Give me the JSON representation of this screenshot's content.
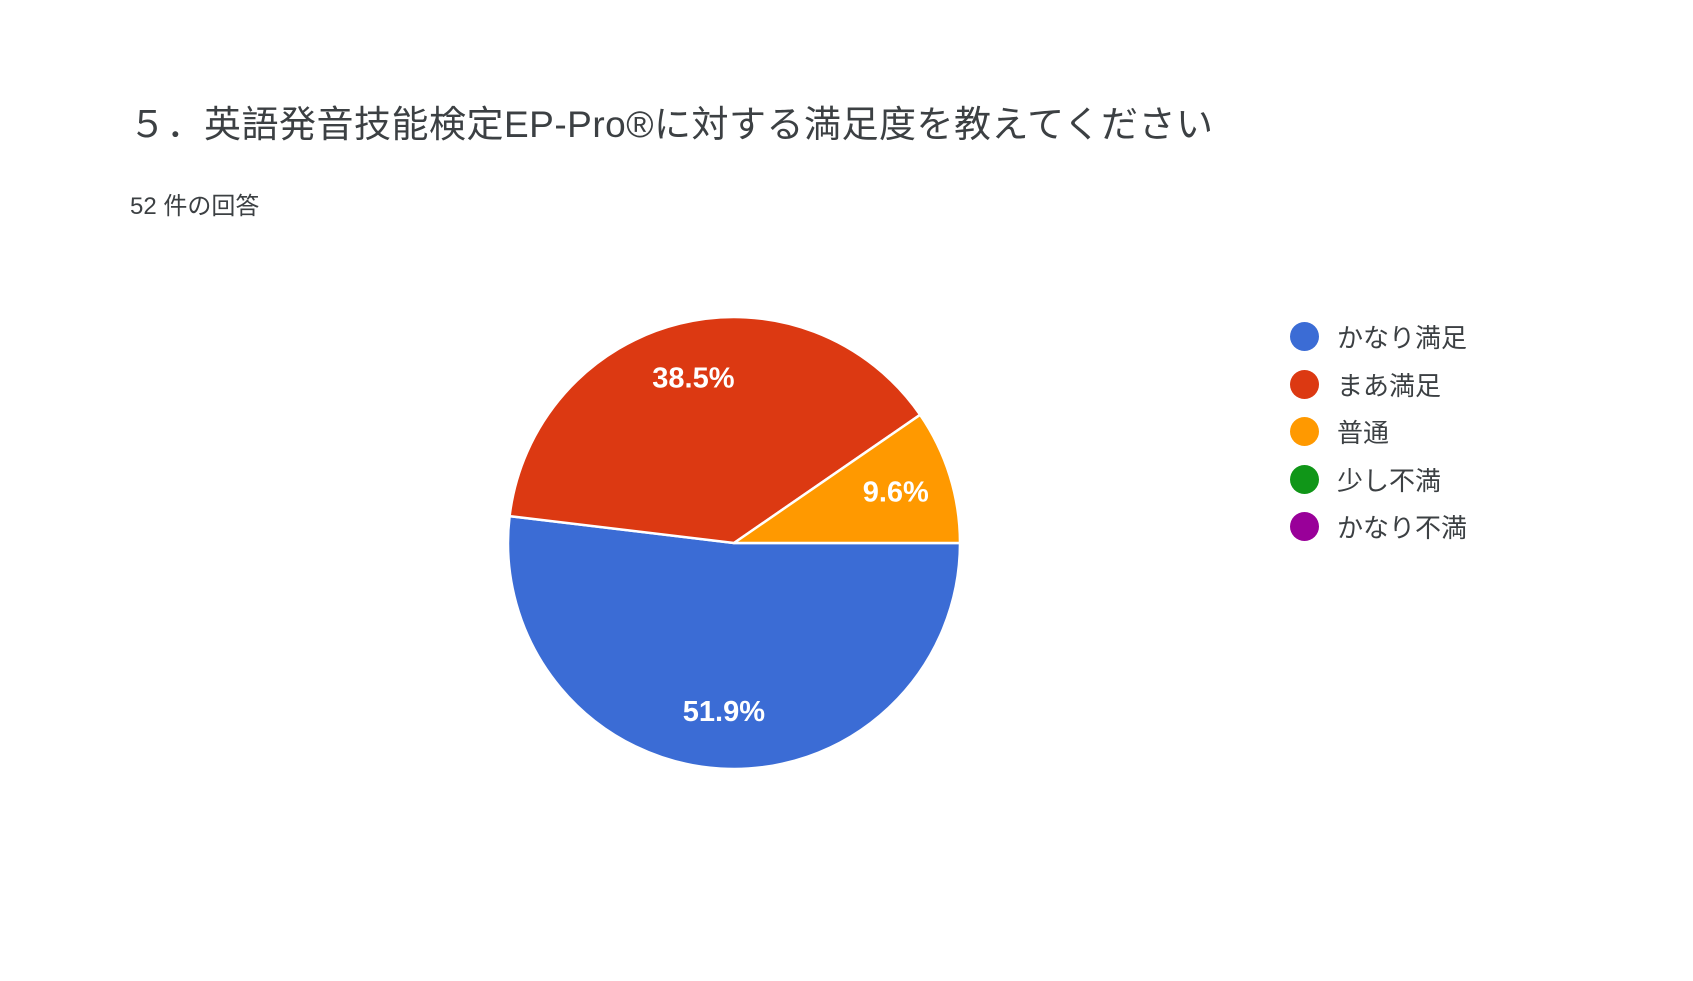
{
  "header": {
    "title": "５．英語発音技能検定EP-Pro®に対する満足度を教えてください",
    "responses": "52 件の回答"
  },
  "chart_data": {
    "type": "pie",
    "title": "５．英語発音技能検定EP-Pro®に対する満足度を教えてください",
    "subtitle": "52 件の回答",
    "total_responses": 52,
    "start_angle_deg": 0,
    "direction": "clockwise",
    "legend_position": "right",
    "background": "#ffffff",
    "slices": [
      {
        "label": "かなり満足",
        "pct": 51.9,
        "pct_label": "51.9%",
        "color": "#3b6cd5"
      },
      {
        "label": "まあ満足",
        "pct": 38.5,
        "pct_label": "38.5%",
        "color": "#dc3912"
      },
      {
        "label": "普通",
        "pct": 9.6,
        "pct_label": "9.6%",
        "color": "#ff9900"
      },
      {
        "label": "少し不満",
        "pct": 0,
        "pct_label": "",
        "color": "#109618"
      },
      {
        "label": "かなり不満",
        "pct": 0,
        "pct_label": "",
        "color": "#990099"
      }
    ]
  }
}
